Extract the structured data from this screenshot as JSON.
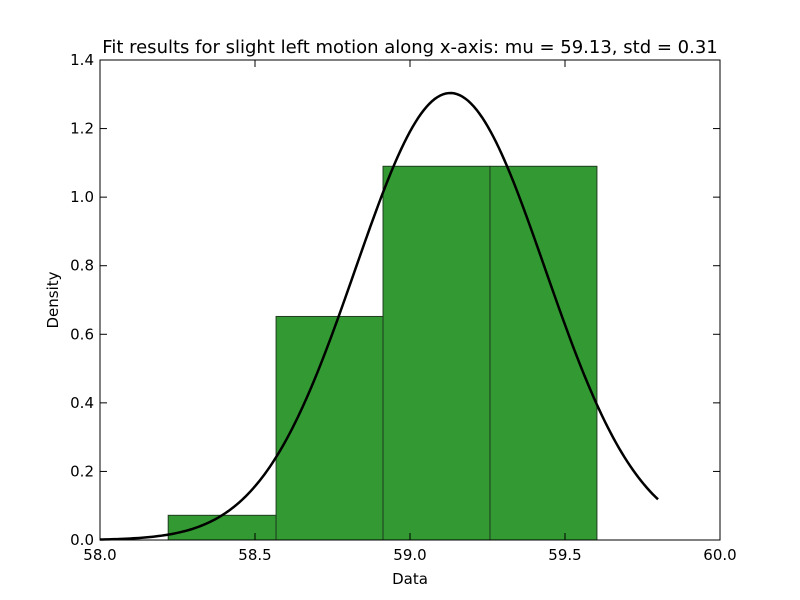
{
  "chart_data": {
    "type": "bar",
    "title": "Fit results for slight left motion along x-axis: mu = 59.13,  std = 0.31",
    "xlabel": "Data",
    "ylabel": "Density",
    "xlim": [
      58.0,
      60.0
    ],
    "ylim": [
      0.0,
      1.4
    ],
    "xticks": [
      "58.0",
      "58.5",
      "59.0",
      "59.5",
      "60.0"
    ],
    "yticks": [
      "0.0",
      "0.2",
      "0.4",
      "0.6",
      "0.8",
      "1.0",
      "1.2",
      "1.4"
    ],
    "grid": false,
    "bins": [
      {
        "x0": 58.22,
        "x1": 58.568,
        "value": 0.072
      },
      {
        "x0": 58.568,
        "x1": 58.913,
        "value": 0.652
      },
      {
        "x0": 58.913,
        "x1": 59.258,
        "value": 1.09
      },
      {
        "x0": 59.258,
        "x1": 59.603,
        "value": 1.09
      }
    ],
    "fit_curve": {
      "type": "normal_pdf",
      "mu": 59.13,
      "std": 0.306,
      "x_range": [
        58.0,
        59.8
      ]
    },
    "colors": {
      "bar_fill": "#339933",
      "bar_edge": "#1f3d1f",
      "curve": "#000000"
    }
  }
}
